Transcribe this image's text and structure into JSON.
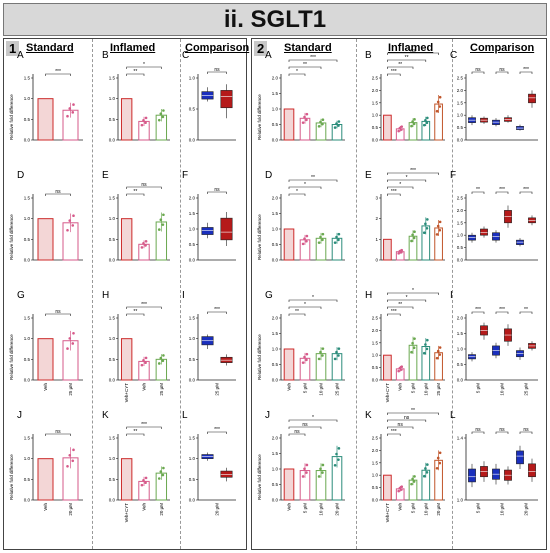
{
  "title": "ii. SGLT1",
  "panel1": {
    "number": "1",
    "headers": [
      "Standard",
      "Inflamed",
      "Comparison"
    ]
  },
  "panel2": {
    "number": "2",
    "headers": [
      "Standard",
      "Inflamed",
      "Comparison"
    ]
  },
  "ylabel": "Relative fold difference",
  "colors": {
    "veh": "#cc2a2a",
    "mauve": "#d65a8a",
    "green": "#6aa84f",
    "teal": "#2a8c7a",
    "blue": "#1a2fbd",
    "red": "#b51a1a",
    "bar_fill": "#f6dcdc"
  },
  "chart_data": [
    {
      "id": "1A",
      "type": "bar",
      "letter": "A",
      "categories": [
        "",
        ""
      ],
      "values": [
        1.0,
        0.72
      ],
      "ylim": [
        0,
        1.5
      ],
      "ticks": [
        "0.0",
        "0.5",
        "1.0",
        "1.5"
      ],
      "sig": [
        {
          "a": 0,
          "b": 1,
          "label": "***"
        }
      ]
    },
    {
      "id": "1B",
      "type": "bar",
      "letter": "B",
      "categories": [
        "",
        "",
        ""
      ],
      "values": [
        1.0,
        0.45,
        0.6
      ],
      "ylim": [
        0,
        1.5
      ],
      "ticks": [
        "0.0",
        "0.5",
        "1.0",
        "1.5"
      ],
      "sig": [
        {
          "a": 0,
          "b": 1,
          "label": "**"
        },
        {
          "a": 0,
          "b": 2,
          "label": "*"
        }
      ]
    },
    {
      "id": "1C",
      "type": "box",
      "letter": "C",
      "categories": [
        ""
      ],
      "boxes": [
        [
          0.62,
          0.66,
          0.72,
          0.78,
          0.85
        ],
        [
          0.35,
          0.52,
          0.7,
          0.8,
          0.9
        ]
      ],
      "ylim": [
        0,
        1.0
      ],
      "ticks": [
        "0.0",
        "0.5",
        "1.0"
      ],
      "sig": [
        {
          "a": 0,
          "b": 1,
          "label": "ns"
        }
      ]
    },
    {
      "id": "1D",
      "type": "bar",
      "letter": "D",
      "categories": [
        "",
        ""
      ],
      "values": [
        1.0,
        0.9
      ],
      "ylim": [
        0,
        1.5
      ],
      "ticks": [
        "0.0",
        "0.5",
        "1.0",
        "1.5"
      ],
      "sig": [
        {
          "a": 0,
          "b": 1,
          "label": "ns"
        }
      ]
    },
    {
      "id": "1E",
      "type": "bar",
      "letter": "E",
      "categories": [
        "",
        "",
        ""
      ],
      "values": [
        1.0,
        0.38,
        0.92
      ],
      "ylim": [
        0,
        1.5
      ],
      "ticks": [
        "0.0",
        "0.5",
        "1.0",
        "1.5"
      ],
      "sig": [
        {
          "a": 0,
          "b": 1,
          "label": "**"
        },
        {
          "a": 0,
          "b": 2,
          "label": "ns"
        }
      ]
    },
    {
      "id": "1F",
      "type": "box",
      "letter": "F",
      "categories": [
        ""
      ],
      "boxes": [
        [
          0.7,
          0.82,
          0.95,
          1.05,
          1.2
        ],
        [
          0.45,
          0.65,
          0.9,
          1.35,
          1.55
        ]
      ],
      "ylim": [
        0,
        2.0
      ],
      "ticks": [
        "0.0",
        "0.5",
        "1.0",
        "1.5",
        "2.0"
      ],
      "sig": [
        {
          "a": 0,
          "b": 1,
          "label": "ns"
        }
      ]
    },
    {
      "id": "1G",
      "type": "bar",
      "letter": "G",
      "categories": [
        "Veh",
        "25 µM"
      ],
      "values": [
        1.0,
        0.95
      ],
      "ylim": [
        0,
        1.5
      ],
      "ticks": [
        "0.0",
        "0.5",
        "1.0",
        "1.5"
      ],
      "sig": [
        {
          "a": 0,
          "b": 1,
          "label": "ns"
        }
      ]
    },
    {
      "id": "1H",
      "type": "bar",
      "letter": "H",
      "categories": [
        "Veh+CYT",
        "Veh",
        "25 µM"
      ],
      "values": [
        1.0,
        0.45,
        0.5
      ],
      "ylim": [
        0,
        1.5
      ],
      "ticks": [
        "0.0",
        "0.5",
        "1.0",
        "1.5"
      ],
      "sig": [
        {
          "a": 0,
          "b": 1,
          "label": "**"
        },
        {
          "a": 0,
          "b": 2,
          "label": "***"
        }
      ]
    },
    {
      "id": "1I",
      "type": "box",
      "letter": "I",
      "categories": [
        "25 µM"
      ],
      "boxes": [
        [
          0.75,
          0.85,
          0.95,
          1.05,
          1.1
        ],
        [
          0.35,
          0.42,
          0.48,
          0.55,
          0.62
        ]
      ],
      "ylim": [
        0,
        1.5
      ],
      "ticks": [
        "0.0",
        "0.5",
        "1.0",
        "1.5"
      ],
      "sig": [
        {
          "a": 0,
          "b": 1,
          "label": "***"
        }
      ]
    },
    {
      "id": "1J",
      "type": "bar",
      "letter": "J",
      "categories": [
        "Veh",
        "20 µM"
      ],
      "values": [
        1.0,
        1.02
      ],
      "ylim": [
        0,
        1.5
      ],
      "ticks": [
        "0.0",
        "0.5",
        "1.0",
        "1.5"
      ],
      "sig": [
        {
          "a": 0,
          "b": 1,
          "label": "ns"
        }
      ]
    },
    {
      "id": "1K",
      "type": "bar",
      "letter": "K",
      "categories": [
        "Veh+CYT",
        "Veh",
        "20 µM"
      ],
      "values": [
        1.0,
        0.45,
        0.65
      ],
      "ylim": [
        0,
        1.5
      ],
      "ticks": [
        "0.0",
        "0.5",
        "1.0",
        "1.5"
      ],
      "sig": [
        {
          "a": 0,
          "b": 1,
          "label": "**"
        },
        {
          "a": 0,
          "b": 2,
          "label": "***"
        }
      ]
    },
    {
      "id": "1L",
      "type": "box",
      "letter": "L",
      "categories": [
        "20 µM"
      ],
      "boxes": [
        [
          0.95,
          1.0,
          1.05,
          1.1,
          1.15
        ],
        [
          0.45,
          0.55,
          0.62,
          0.7,
          0.78
        ]
      ],
      "ylim": [
        0,
        1.5
      ],
      "ticks": [
        "0.0",
        "0.5",
        "1.0",
        "1.5"
      ],
      "sig": [
        {
          "a": 0,
          "b": 1,
          "label": "***"
        }
      ]
    },
    {
      "id": "2A",
      "type": "bar",
      "letter": "A",
      "categories": [
        "",
        "",
        "",
        ""
      ],
      "values": [
        1.0,
        0.7,
        0.55,
        0.5
      ],
      "ylim": [
        0,
        2.0
      ],
      "ticks": [
        "0.0",
        "0.5",
        "1.0",
        "1.5",
        "2.0"
      ],
      "sig": [
        {
          "a": 0,
          "b": 1,
          "label": "*"
        },
        {
          "a": 0,
          "b": 2,
          "label": "**"
        },
        {
          "a": 0,
          "b": 3,
          "label": "***"
        }
      ]
    },
    {
      "id": "2B",
      "type": "bar",
      "letter": "B",
      "categories": [
        "",
        "",
        "",
        "",
        ""
      ],
      "values": [
        1.0,
        0.45,
        0.7,
        0.75,
        1.45
      ],
      "ylim": [
        0,
        2.5
      ],
      "ticks": [
        "0.0",
        "0.5",
        "1.0",
        "1.5",
        "2.0",
        "2.5"
      ],
      "sig": [
        {
          "a": 0,
          "b": 1,
          "label": "***"
        },
        {
          "a": 0,
          "b": 2,
          "label": "**"
        },
        {
          "a": 0,
          "b": 3,
          "label": "**"
        },
        {
          "a": 0,
          "b": 4,
          "label": "ns"
        }
      ]
    },
    {
      "id": "2C",
      "type": "box",
      "letter": "C",
      "categories": [
        "",
        "",
        ""
      ],
      "boxes": [
        [
          0.6,
          0.7,
          0.8,
          0.9,
          1.0
        ],
        [
          0.65,
          0.72,
          0.8,
          0.88,
          0.95
        ],
        [
          0.55,
          0.62,
          0.72,
          0.8,
          0.88
        ],
        [
          0.7,
          0.75,
          0.82,
          0.9,
          1.0
        ],
        [
          0.38,
          0.42,
          0.48,
          0.55,
          0.62
        ],
        [
          1.3,
          1.5,
          1.7,
          1.85,
          2.0
        ]
      ],
      "ylim": [
        0,
        2.5
      ],
      "ticks": [
        "0.0",
        "0.5",
        "1.0",
        "1.5",
        "2.0",
        "2.5"
      ],
      "sig": [
        {
          "a": 0,
          "b": 1,
          "label": "ns"
        },
        {
          "a": 2,
          "b": 3,
          "label": "ns"
        },
        {
          "a": 4,
          "b": 5,
          "label": "***"
        }
      ]
    },
    {
      "id": "2D",
      "type": "bar",
      "letter": "D",
      "categories": [
        "",
        "",
        "",
        ""
      ],
      "values": [
        1.0,
        0.65,
        0.7,
        0.7
      ],
      "ylim": [
        0,
        2.0
      ],
      "ticks": [
        "0.0",
        "0.5",
        "1.0",
        "1.5",
        "2.0"
      ],
      "sig": [
        {
          "a": 0,
          "b": 1,
          "label": "*"
        },
        {
          "a": 0,
          "b": 2,
          "label": "*"
        },
        {
          "a": 0,
          "b": 3,
          "label": "**"
        }
      ]
    },
    {
      "id": "2E",
      "type": "bar",
      "letter": "E",
      "categories": [
        "",
        "",
        "",
        "",
        ""
      ],
      "values": [
        1.0,
        0.4,
        1.15,
        1.65,
        1.55
      ],
      "ylim": [
        0,
        3.0
      ],
      "ticks": [
        "0",
        "1",
        "2",
        "3"
      ],
      "sig": [
        {
          "a": 0,
          "b": 1,
          "label": "***"
        },
        {
          "a": 0,
          "b": 2,
          "label": "*"
        },
        {
          "a": 0,
          "b": 3,
          "label": "*"
        },
        {
          "a": 0,
          "b": 4,
          "label": "***"
        }
      ]
    },
    {
      "id": "2F",
      "type": "box",
      "letter": "F",
      "categories": [
        "",
        "",
        ""
      ],
      "boxes": [
        [
          0.7,
          0.8,
          0.9,
          1.0,
          1.1
        ],
        [
          0.9,
          1.0,
          1.1,
          1.25,
          1.35
        ],
        [
          0.7,
          0.8,
          0.95,
          1.1,
          1.2
        ],
        [
          1.3,
          1.5,
          1.75,
          2.0,
          2.2
        ],
        [
          0.55,
          0.62,
          0.72,
          0.8,
          0.88
        ],
        [
          1.4,
          1.5,
          1.6,
          1.7,
          1.8
        ]
      ],
      "ylim": [
        0,
        2.5
      ],
      "ticks": [
        "0.0",
        "0.5",
        "1.0",
        "1.5",
        "2.0",
        "2.5"
      ],
      "sig": [
        {
          "a": 0,
          "b": 1,
          "label": "**"
        },
        {
          "a": 2,
          "b": 3,
          "label": "***"
        },
        {
          "a": 4,
          "b": 5,
          "label": "***"
        }
      ]
    },
    {
      "id": "2G",
      "type": "bar",
      "letter": "G",
      "categories": [
        "Veh",
        "5 µM",
        "10 µM",
        "25 µM"
      ],
      "values": [
        1.0,
        0.7,
        0.85,
        0.85
      ],
      "ylim": [
        0,
        2.0
      ],
      "ticks": [
        "0.0",
        "0.5",
        "1.0",
        "1.5",
        "2.0"
      ],
      "sig": [
        {
          "a": 0,
          "b": 1,
          "label": "**"
        },
        {
          "a": 0,
          "b": 2,
          "label": "*"
        },
        {
          "a": 0,
          "b": 3,
          "label": "*"
        }
      ]
    },
    {
      "id": "2H",
      "type": "bar",
      "letter": "H",
      "categories": [
        "Veh+CYT",
        "Veh",
        "5 µM",
        "10 µM",
        "25 µM"
      ],
      "values": [
        1.0,
        0.45,
        1.4,
        1.35,
        1.1
      ],
      "ylim": [
        0,
        2.5
      ],
      "ticks": [
        "0.0",
        "0.5",
        "1.0",
        "1.5",
        "2.0",
        "2.5"
      ],
      "sig": [
        {
          "a": 0,
          "b": 1,
          "label": "***"
        },
        {
          "a": 0,
          "b": 2,
          "label": "**"
        },
        {
          "a": 0,
          "b": 3,
          "label": "*"
        },
        {
          "a": 0,
          "b": 4,
          "label": "*"
        }
      ]
    },
    {
      "id": "2I",
      "type": "box",
      "letter": "I",
      "categories": [
        "5 µM",
        "10 µM",
        "25 µM"
      ],
      "boxes": [
        [
          0.6,
          0.68,
          0.75,
          0.82,
          0.9
        ],
        [
          1.3,
          1.45,
          1.6,
          1.75,
          1.85
        ],
        [
          0.7,
          0.8,
          0.95,
          1.1,
          1.2
        ],
        [
          1.1,
          1.25,
          1.45,
          1.65,
          1.8
        ],
        [
          0.65,
          0.75,
          0.85,
          0.95,
          1.05
        ],
        [
          0.95,
          1.02,
          1.1,
          1.18,
          1.25
        ]
      ],
      "ylim": [
        0,
        2.0
      ],
      "ticks": [
        "0.0",
        "0.5",
        "1.0",
        "1.5",
        "2.0"
      ],
      "sig": [
        {
          "a": 0,
          "b": 1,
          "label": "***"
        },
        {
          "a": 2,
          "b": 3,
          "label": "***"
        },
        {
          "a": 4,
          "b": 5,
          "label": "**"
        }
      ]
    },
    {
      "id": "2J",
      "type": "bar",
      "letter": "J",
      "categories": [
        "Veh",
        "5 µM",
        "10 µM",
        "20 µM"
      ],
      "values": [
        1.0,
        0.95,
        0.95,
        1.4
      ],
      "ylim": [
        0,
        2.0
      ],
      "ticks": [
        "0.0",
        "0.5",
        "1.0",
        "1.5",
        "2.0"
      ],
      "sig": [
        {
          "a": 0,
          "b": 1,
          "label": "ns"
        },
        {
          "a": 0,
          "b": 2,
          "label": "ns"
        },
        {
          "a": 0,
          "b": 3,
          "label": "*"
        }
      ]
    },
    {
      "id": "2K",
      "type": "bar",
      "letter": "K",
      "categories": [
        "Veh+CYT",
        "Veh",
        "5 µM",
        "10 µM",
        "20 µM"
      ],
      "values": [
        1.0,
        0.45,
        0.8,
        1.2,
        1.6
      ],
      "ylim": [
        0,
        2.5
      ],
      "ticks": [
        "0.0",
        "0.5",
        "1.0",
        "1.5",
        "2.0",
        "2.5"
      ],
      "sig": [
        {
          "a": 0,
          "b": 1,
          "label": "***"
        },
        {
          "a": 0,
          "b": 2,
          "label": "ns"
        },
        {
          "a": 0,
          "b": 3,
          "label": "ns"
        },
        {
          "a": 0,
          "b": 4,
          "label": "**"
        }
      ]
    },
    {
      "id": "2L",
      "type": "box",
      "letter": "L",
      "categories": [
        "5 µM",
        "10 µM",
        "20 µM"
      ],
      "boxes": [
        [
          0.85,
          0.95,
          1.05,
          1.2,
          1.3
        ],
        [
          0.95,
          1.05,
          1.15,
          1.25,
          1.35
        ],
        [
          0.9,
          1.0,
          1.1,
          1.2,
          1.3
        ],
        [
          0.9,
          0.98,
          1.08,
          1.18,
          1.25
        ],
        [
          1.2,
          1.3,
          1.45,
          1.55,
          1.65
        ],
        [
          0.95,
          1.05,
          1.15,
          1.3,
          1.4
        ]
      ],
      "ylim": [
        0.6,
        1.8
      ],
      "ticks": [
        "1.0",
        "1.4"
      ],
      "sig": [
        {
          "a": 0,
          "b": 1,
          "label": "ns"
        },
        {
          "a": 2,
          "b": 3,
          "label": "ns"
        },
        {
          "a": 4,
          "b": 5,
          "label": "ns"
        }
      ]
    }
  ]
}
